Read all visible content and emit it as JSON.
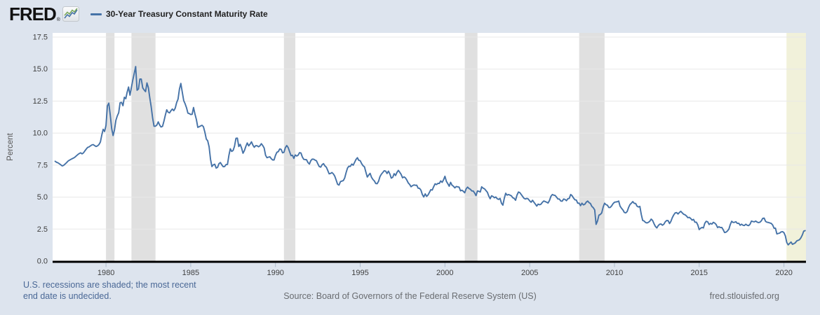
{
  "header": {
    "logo_text": "FRED",
    "registered_mark": "®",
    "legend": {
      "series_label": "30-Year Treasury Constant Maturity Rate"
    }
  },
  "footer": {
    "note_line1": "U.S. recessions are shaded; the most recent",
    "note_line2": "end date is undecided.",
    "source": "Source: Board of Governors of the Federal Reserve System (US)",
    "site": "fred.stlouisfed.org"
  },
  "chart_data": {
    "type": "line",
    "title": "30-Year Treasury Constant Maturity Rate",
    "xlabel": "",
    "ylabel": "Percent",
    "ylim": [
      0,
      17.5
    ],
    "xlim": [
      1976.85,
      2021.3
    ],
    "y_ticks": [
      0,
      2.5,
      5,
      7.5,
      10,
      12.5,
      15,
      17.5
    ],
    "x_ticks": [
      1980,
      1985,
      1990,
      1995,
      2000,
      2005,
      2010,
      2015,
      2020
    ],
    "grid": true,
    "legend_position": "top",
    "line_color": "#4572a7",
    "grid_color": "#e8e8e8",
    "recession_color": "#e0e0e0",
    "ongoing_recession_color": "#f1f1da",
    "recessions": [
      {
        "start": 1980.0,
        "end": 1980.5
      },
      {
        "start": 1981.5,
        "end": 1982.92
      },
      {
        "start": 1990.5,
        "end": 1991.17
      },
      {
        "start": 2001.17,
        "end": 2001.92
      },
      {
        "start": 2007.92,
        "end": 2009.42
      },
      {
        "start": 2020.15,
        "end": 2021.3,
        "ongoing": true
      }
    ],
    "series": [
      {
        "name": "30-Year Treasury Constant Maturity Rate",
        "units": "percent",
        "start": 1977.0,
        "step": 0.0833333,
        "values": [
          7.8,
          7.72,
          7.68,
          7.6,
          7.52,
          7.44,
          7.48,
          7.58,
          7.68,
          7.8,
          7.88,
          7.94,
          8.0,
          8.05,
          8.12,
          8.22,
          8.32,
          8.4,
          8.46,
          8.38,
          8.45,
          8.6,
          8.75,
          8.88,
          8.92,
          9.0,
          9.08,
          9.1,
          9.02,
          8.95,
          9.0,
          9.1,
          9.3,
          9.85,
          10.3,
          10.12,
          10.6,
          12.13,
          12.34,
          11.4,
          10.36,
          9.81,
          10.24,
          11.0,
          11.34,
          11.59,
          12.37,
          12.4,
          12.14,
          12.8,
          12.69,
          13.2,
          13.6,
          12.96,
          13.59,
          14.17,
          14.67,
          15.2,
          13.35,
          13.45,
          14.22,
          14.22,
          13.53,
          13.37,
          13.24,
          13.92,
          13.55,
          12.77,
          12.07,
          11.17,
          10.54,
          10.54,
          10.63,
          10.88,
          10.63,
          10.48,
          10.53,
          10.93,
          11.4,
          11.82,
          11.63,
          11.58,
          11.75,
          11.88,
          11.75,
          11.95,
          12.38,
          12.65,
          13.43,
          13.88,
          13.21,
          12.54,
          12.29,
          11.98,
          11.56,
          11.52,
          11.45,
          11.47,
          12.0,
          11.47,
          11.05,
          10.45,
          10.5,
          10.56,
          10.61,
          10.5,
          10.06,
          9.54,
          9.4,
          8.93,
          7.96,
          7.39,
          7.52,
          7.57,
          7.27,
          7.33,
          7.62,
          7.7,
          7.52,
          7.37,
          7.39,
          7.54,
          7.55,
          8.25,
          8.78,
          8.57,
          8.64,
          8.97,
          9.59,
          9.61,
          8.95,
          9.12,
          8.83,
          8.43,
          8.63,
          8.95,
          9.23,
          9.0,
          9.14,
          9.32,
          9.06,
          8.89,
          9.02,
          9.01,
          8.93,
          9.01,
          9.17,
          9.03,
          8.83,
          8.27,
          8.08,
          8.12,
          8.15,
          8.0,
          7.9,
          7.9,
          8.26,
          8.5,
          8.56,
          8.76,
          8.73,
          8.46,
          8.5,
          8.86,
          9.03,
          8.86,
          8.54,
          8.24,
          8.27,
          8.03,
          8.29,
          8.21,
          8.27,
          8.47,
          8.45,
          8.14,
          7.95,
          7.93,
          7.92,
          7.7,
          7.58,
          7.85,
          7.97,
          7.96,
          7.89,
          7.84,
          7.6,
          7.39,
          7.34,
          7.53,
          7.61,
          7.44,
          7.34,
          7.09,
          6.82,
          6.85,
          6.92,
          6.81,
          6.63,
          6.32,
          6.0,
          5.94,
          6.21,
          6.25,
          6.29,
          6.49,
          6.91,
          7.27,
          7.41,
          7.4,
          7.58,
          7.49,
          7.71,
          7.94,
          8.08,
          7.87,
          7.85,
          7.61,
          7.45,
          7.36,
          6.95,
          6.57,
          6.72,
          6.86,
          6.55,
          6.37,
          6.26,
          6.06,
          6.05,
          6.24,
          6.6,
          6.79,
          6.93,
          7.06,
          7.03,
          6.84,
          7.03,
          6.81,
          6.48,
          6.55,
          6.83,
          6.69,
          6.93,
          7.09,
          6.94,
          6.77,
          6.51,
          6.58,
          6.5,
          6.33,
          6.11,
          5.99,
          5.81,
          5.89,
          5.95,
          5.92,
          5.93,
          5.7,
          5.68,
          5.54,
          5.2,
          5.01,
          5.25,
          5.06,
          5.16,
          5.37,
          5.58,
          5.55,
          5.81,
          6.04,
          5.98,
          6.07,
          6.07,
          6.26,
          6.15,
          6.35,
          6.63,
          6.23,
          6.05,
          5.85,
          6.15,
          5.93,
          5.85,
          5.72,
          5.83,
          5.8,
          5.78,
          5.49,
          5.54,
          5.45,
          5.34,
          5.65,
          5.78,
          5.67,
          5.61,
          5.48,
          5.48,
          5.32,
          5.12,
          5.48,
          5.45,
          5.4,
          5.8,
          5.7,
          5.65,
          5.52,
          5.38,
          5.08,
          4.87,
          5.1,
          5.05,
          4.95,
          5.01,
          4.87,
          4.82,
          4.9,
          4.52,
          4.37,
          4.9,
          5.3,
          5.15,
          5.2,
          5.15,
          5.1,
          4.95,
          4.9,
          4.75,
          5.15,
          5.4,
          5.35,
          5.2,
          5.05,
          4.9,
          4.85,
          4.9,
          4.85,
          4.7,
          4.6,
          4.75,
          4.6,
          4.45,
          4.3,
          4.45,
          4.4,
          4.45,
          4.6,
          4.7,
          4.65,
          4.6,
          4.54,
          4.73,
          5.06,
          5.2,
          5.15,
          5.13,
          5.0,
          4.85,
          4.85,
          4.69,
          4.68,
          4.85,
          4.82,
          4.72,
          4.87,
          4.9,
          5.2,
          5.11,
          4.93,
          4.79,
          4.77,
          4.52,
          4.53,
          4.33,
          4.52,
          4.39,
          4.44,
          4.6,
          4.69,
          4.57,
          4.5,
          4.27,
          4.17,
          4.0,
          2.87,
          3.13,
          3.59,
          3.64,
          3.76,
          4.23,
          4.52,
          4.41,
          4.37,
          4.19,
          4.19,
          4.31,
          4.49,
          4.6,
          4.62,
          4.64,
          4.69,
          4.29,
          4.13,
          3.99,
          3.8,
          3.77,
          3.87,
          4.19,
          4.42,
          4.52,
          4.65,
          4.51,
          4.5,
          4.29,
          4.23,
          4.27,
          3.65,
          3.18,
          3.13,
          3.02,
          2.98,
          3.03,
          3.11,
          3.28,
          3.18,
          2.93,
          2.7,
          2.59,
          2.77,
          2.88,
          2.9,
          2.8,
          2.88,
          3.08,
          3.17,
          3.16,
          2.93,
          3.11,
          3.4,
          3.61,
          3.76,
          3.79,
          3.68,
          3.8,
          3.89,
          3.77,
          3.66,
          3.62,
          3.52,
          3.39,
          3.42,
          3.33,
          3.2,
          3.26,
          3.04,
          3.04,
          2.83,
          2.46,
          2.57,
          2.63,
          2.59,
          2.96,
          3.11,
          3.07,
          2.86,
          2.95,
          2.89,
          3.03,
          2.97,
          2.86,
          2.62,
          2.68,
          2.62,
          2.63,
          2.45,
          2.23,
          2.26,
          2.35,
          2.5,
          2.86,
          3.11,
          3.02,
          3.03,
          3.08,
          2.94,
          2.96,
          2.8,
          2.88,
          2.8,
          2.78,
          2.88,
          2.8,
          2.77,
          2.88,
          3.13,
          3.09,
          3.07,
          3.13,
          3.05,
          3.01,
          3.04,
          3.15,
          3.34,
          3.36,
          3.1,
          3.04,
          3.02,
          2.98,
          2.94,
          2.82,
          2.57,
          2.57,
          2.12,
          2.16,
          2.19,
          2.28,
          2.3,
          2.22,
          1.97,
          1.46,
          1.27,
          1.38,
          1.49,
          1.31,
          1.36,
          1.42,
          1.57,
          1.62,
          1.67,
          1.82,
          2.04,
          2.34,
          2.38
        ]
      }
    ]
  }
}
